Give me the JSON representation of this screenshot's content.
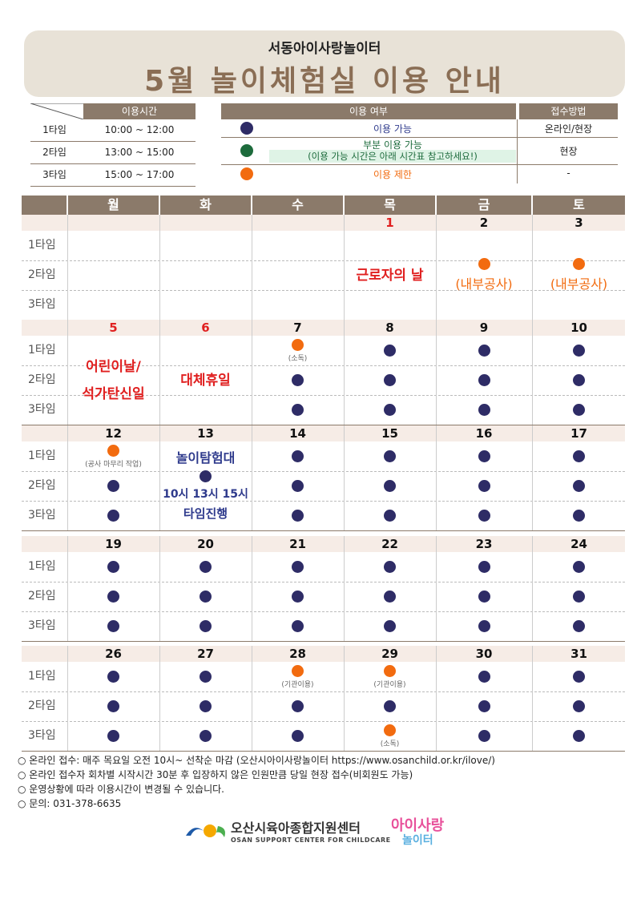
{
  "header": {
    "subtitle": "서동아이사랑놀이터",
    "title": "5월 놀이체험실 이용 안내"
  },
  "time_table": {
    "header": "이용시간",
    "rows": [
      {
        "label": "1타임",
        "time": "10:00 ~ 12:00"
      },
      {
        "label": "2타임",
        "time": "13:00 ~ 15:00"
      },
      {
        "label": "3타임",
        "time": "15:00 ~ 17:00"
      }
    ]
  },
  "status_table": {
    "header_usage": "이용 여부",
    "header_method": "접수방법",
    "rows": [
      {
        "color": "#2e2c66",
        "desc": "이용 가능",
        "desc2": "",
        "method": "온라인/현장"
      },
      {
        "color": "#1d6b3c",
        "desc": "부분 이용 가능",
        "desc2": "(이용 가능 시간은 아래 시간표 참고하세요!)",
        "method": "현장"
      },
      {
        "color": "#f26b0f",
        "desc": "이용 제한",
        "desc2": "",
        "method": "-"
      }
    ]
  },
  "calendar": {
    "days": [
      "월",
      "화",
      "수",
      "목",
      "금",
      "토"
    ],
    "slots": [
      "1타임",
      "2타임",
      "3타임"
    ],
    "weeks": [
      {
        "dates": [
          "",
          "",
          "",
          "1",
          "2",
          "3"
        ]
      },
      {
        "dates": [
          "5",
          "6",
          "7",
          "8",
          "9",
          "10"
        ]
      },
      {
        "dates": [
          "12",
          "13",
          "14",
          "15",
          "16",
          "17"
        ]
      },
      {
        "dates": [
          "19",
          "20",
          "21",
          "22",
          "23",
          "24"
        ]
      },
      {
        "dates": [
          "26",
          "27",
          "28",
          "29",
          "30",
          "31"
        ]
      }
    ],
    "texts": {
      "labor_day": "근로자의 날",
      "internal_work": "(내부공사)",
      "childrens_day_1": "어린이날/",
      "childrens_day_2": "석가탄신일",
      "substitute_holiday": "대체휴일",
      "disinfection": "(소독)",
      "construction_finish": "(공사 마무리 작업)",
      "expedition_title": "놀이탐험대",
      "expedition_line1": "10시 13시 15시",
      "expedition_line2": "타임진행",
      "institution_use": "(기관이용)"
    }
  },
  "notes": [
    "온라인 접수: 매주 목요일 오전 10시~ 선착순 마감 (오산시아이사랑놀이터 https://www.osanchild.or.kr/ilove/)",
    "온라인 접수자 회차별 시작시간 30분 후 입장하지 않은 인원만큼 당일 현장 접수(비회원도 가능)",
    "운영상황에 따라 이용시간이 변경될 수 있습니다.",
    "문의: 031-378-6635"
  ],
  "logos": {
    "center_name": "오산시육아종합지원센터",
    "center_name_en": "OSAN SUPPORT CENTER FOR CHILDCARE",
    "playground_name_1": "아이사랑",
    "playground_name_2": "놀이터"
  }
}
